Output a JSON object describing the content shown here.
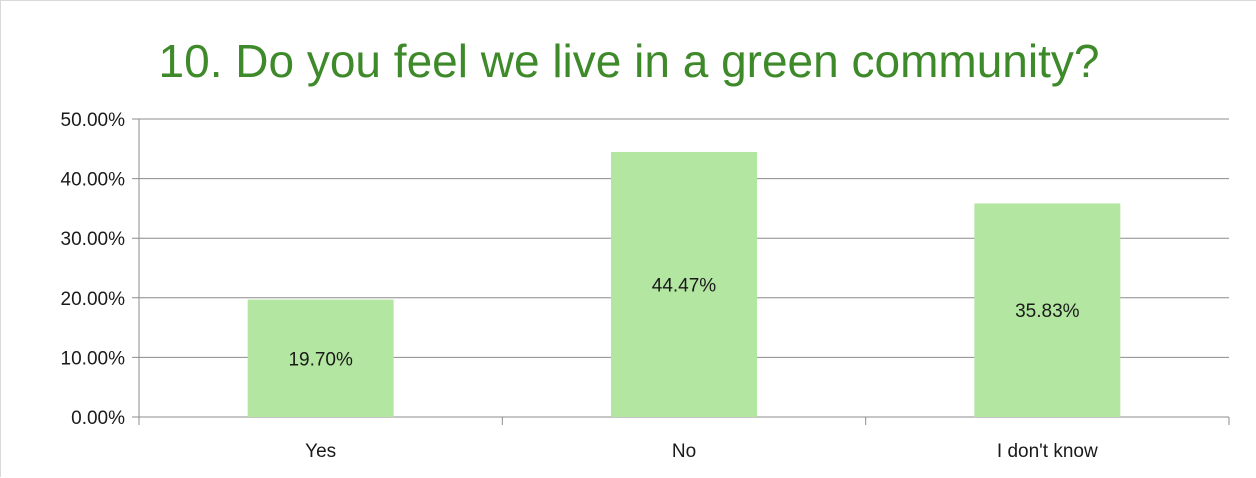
{
  "chart_data": {
    "type": "bar",
    "title": "10. Do you feel we live in a green community?",
    "categories": [
      "Yes",
      "No",
      "I don't know"
    ],
    "values": [
      19.7,
      44.47,
      35.83
    ],
    "value_labels": [
      "19.70%",
      "44.47%",
      "35.83%"
    ],
    "ylim": [
      0,
      50
    ],
    "yticks": [
      0,
      10,
      20,
      30,
      40,
      50
    ],
    "ytick_labels": [
      "0.00%",
      "10.00%",
      "20.00%",
      "30.00%",
      "40.00%",
      "50.00%"
    ],
    "grid": true,
    "legend": "none",
    "xlabel": "",
    "ylabel": "",
    "colors": {
      "bar": "#b3e6a1",
      "title": "#3e8a2a",
      "grid": "#8c8c8c"
    }
  }
}
